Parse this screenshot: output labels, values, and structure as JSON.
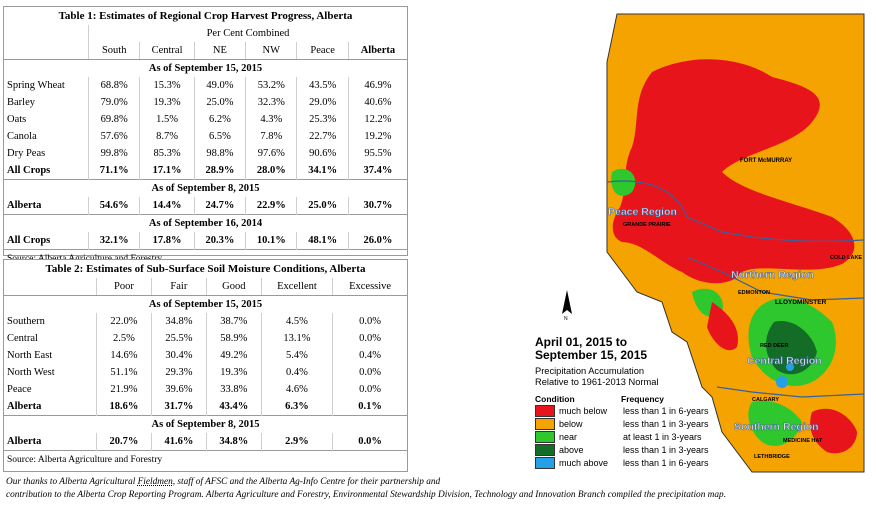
{
  "table1": {
    "title": "Table 1: Estimates of Regional Crop Harvest Progress, Alberta",
    "subtitle": "Per Cent Combined",
    "columns": [
      "South",
      "Central",
      "NE",
      "NW",
      "Peace",
      "Alberta"
    ],
    "section1": "As of September 15, 2015",
    "rows": [
      {
        "label": "Spring Wheat",
        "values": [
          "68.8%",
          "15.3%",
          "49.0%",
          "53.2%",
          "43.5%",
          "46.9%"
        ]
      },
      {
        "label": "Barley",
        "values": [
          "79.0%",
          "19.3%",
          "25.0%",
          "32.3%",
          "29.0%",
          "40.6%"
        ]
      },
      {
        "label": "Oats",
        "values": [
          "69.8%",
          "1.5%",
          "6.2%",
          "4.3%",
          "25.3%",
          "12.2%"
        ]
      },
      {
        "label": "Canola",
        "values": [
          "57.6%",
          "8.7%",
          "6.5%",
          "7.8%",
          "22.7%",
          "19.2%"
        ]
      },
      {
        "label": "Dry Peas",
        "values": [
          "99.8%",
          "85.3%",
          "98.8%",
          "97.6%",
          "90.6%",
          "95.5%"
        ]
      }
    ],
    "allcrops": {
      "label": "All Crops",
      "values": [
        "71.1%",
        "17.1%",
        "28.9%",
        "28.0%",
        "34.1%",
        "37.4%"
      ]
    },
    "section2": "As of September 8, 2015",
    "alberta": {
      "label": "Alberta",
      "values": [
        "54.6%",
        "14.4%",
        "24.7%",
        "22.9%",
        "25.0%",
        "30.7%"
      ]
    },
    "section3": "As of September 16, 2014",
    "allcrops2014": {
      "label": "All Crops",
      "values": [
        "32.1%",
        "17.8%",
        "20.3%",
        "10.1%",
        "48.1%",
        "26.0%"
      ]
    },
    "source": "Source: Alberta Agriculture and Forestry"
  },
  "table2": {
    "title": "Table 2: Estimates of Sub-Surface Soil Moisture Conditions, Alberta",
    "columns": [
      "Poor",
      "Fair",
      "Good",
      "Excellent",
      "Excessive"
    ],
    "section1": "As of September 15, 2015",
    "rows": [
      {
        "label": "Southern",
        "values": [
          "22.0%",
          "34.8%",
          "38.7%",
          "4.5%",
          "0.0%"
        ]
      },
      {
        "label": "Central",
        "values": [
          "2.5%",
          "25.5%",
          "58.9%",
          "13.1%",
          "0.0%"
        ]
      },
      {
        "label": "North East",
        "values": [
          "14.6%",
          "30.4%",
          "49.2%",
          "5.4%",
          "0.4%"
        ]
      },
      {
        "label": "North West",
        "values": [
          "51.1%",
          "29.3%",
          "19.3%",
          "0.4%",
          "0.0%"
        ]
      },
      {
        "label": "Peace",
        "values": [
          "21.9%",
          "39.6%",
          "33.8%",
          "4.6%",
          "0.0%"
        ]
      }
    ],
    "alberta": {
      "label": "Alberta",
      "values": [
        "18.6%",
        "31.7%",
        "43.4%",
        "6.3%",
        "0.1%"
      ]
    },
    "section2": "As of September 8, 2015",
    "alberta2": {
      "label": "Alberta",
      "values": [
        "20.7%",
        "41.6%",
        "34.8%",
        "2.9%",
        "0.0%"
      ]
    },
    "source": "Source: Alberta Agriculture and Forestry"
  },
  "footnote": {
    "line1_a": "Our thanks to Alberta Agricultural ",
    "line1_u": "Fieldmen",
    "line1_b": ", staff of AFSC and the Alberta Ag-Info Centre for their partnership and",
    "line2": "contribution to the Alberta Crop Reporting Program. Alberta Agriculture and Forestry, Environmental Stewardship Division, Technology and Innovation Branch compiled the precipitation map."
  },
  "map": {
    "title_line1": "April 01, 2015 to",
    "title_line2": "September 15, 2015",
    "subtitle_line1": "Precipitation Accumulation",
    "subtitle_line2": "Relative to 1961-2013 Normal",
    "legend_head_condition": "Condition",
    "legend_head_frequency": "Frequency",
    "legend": [
      {
        "condition": "much below",
        "frequency": "less than 1 in 6-years",
        "color": "#e8141c"
      },
      {
        "condition": "below",
        "frequency": "less than 1 in 3-years",
        "color": "#f5a300"
      },
      {
        "condition": "near",
        "frequency": "at least 1 in 3-years",
        "color": "#2ec82e"
      },
      {
        "condition": "above",
        "frequency": "less than 1 in 3-years",
        "color": "#136d27"
      },
      {
        "condition": "much above",
        "frequency": "less than 1 in 6-years",
        "color": "#25a0e6"
      }
    ],
    "labels": {
      "fort_mcmurray": "FORT McMURRAY",
      "peace_region": "Peace Region",
      "grande_prairie": "GRANDE PRAIRIE",
      "cold_lake": "COLD LAKE",
      "northern_region": "Northern Region",
      "edmonton": "EDMONTON",
      "lloydminster": "LLOYDMINSTER",
      "red_deer": "RED DEER",
      "central_region": "Central Region",
      "calgary": "CALGARY",
      "southern_region": "Southern Region",
      "medicine_hat": "MEDICINE HAT",
      "lethbridge": "LETHBRIDGE",
      "north_arrow": "N"
    }
  }
}
